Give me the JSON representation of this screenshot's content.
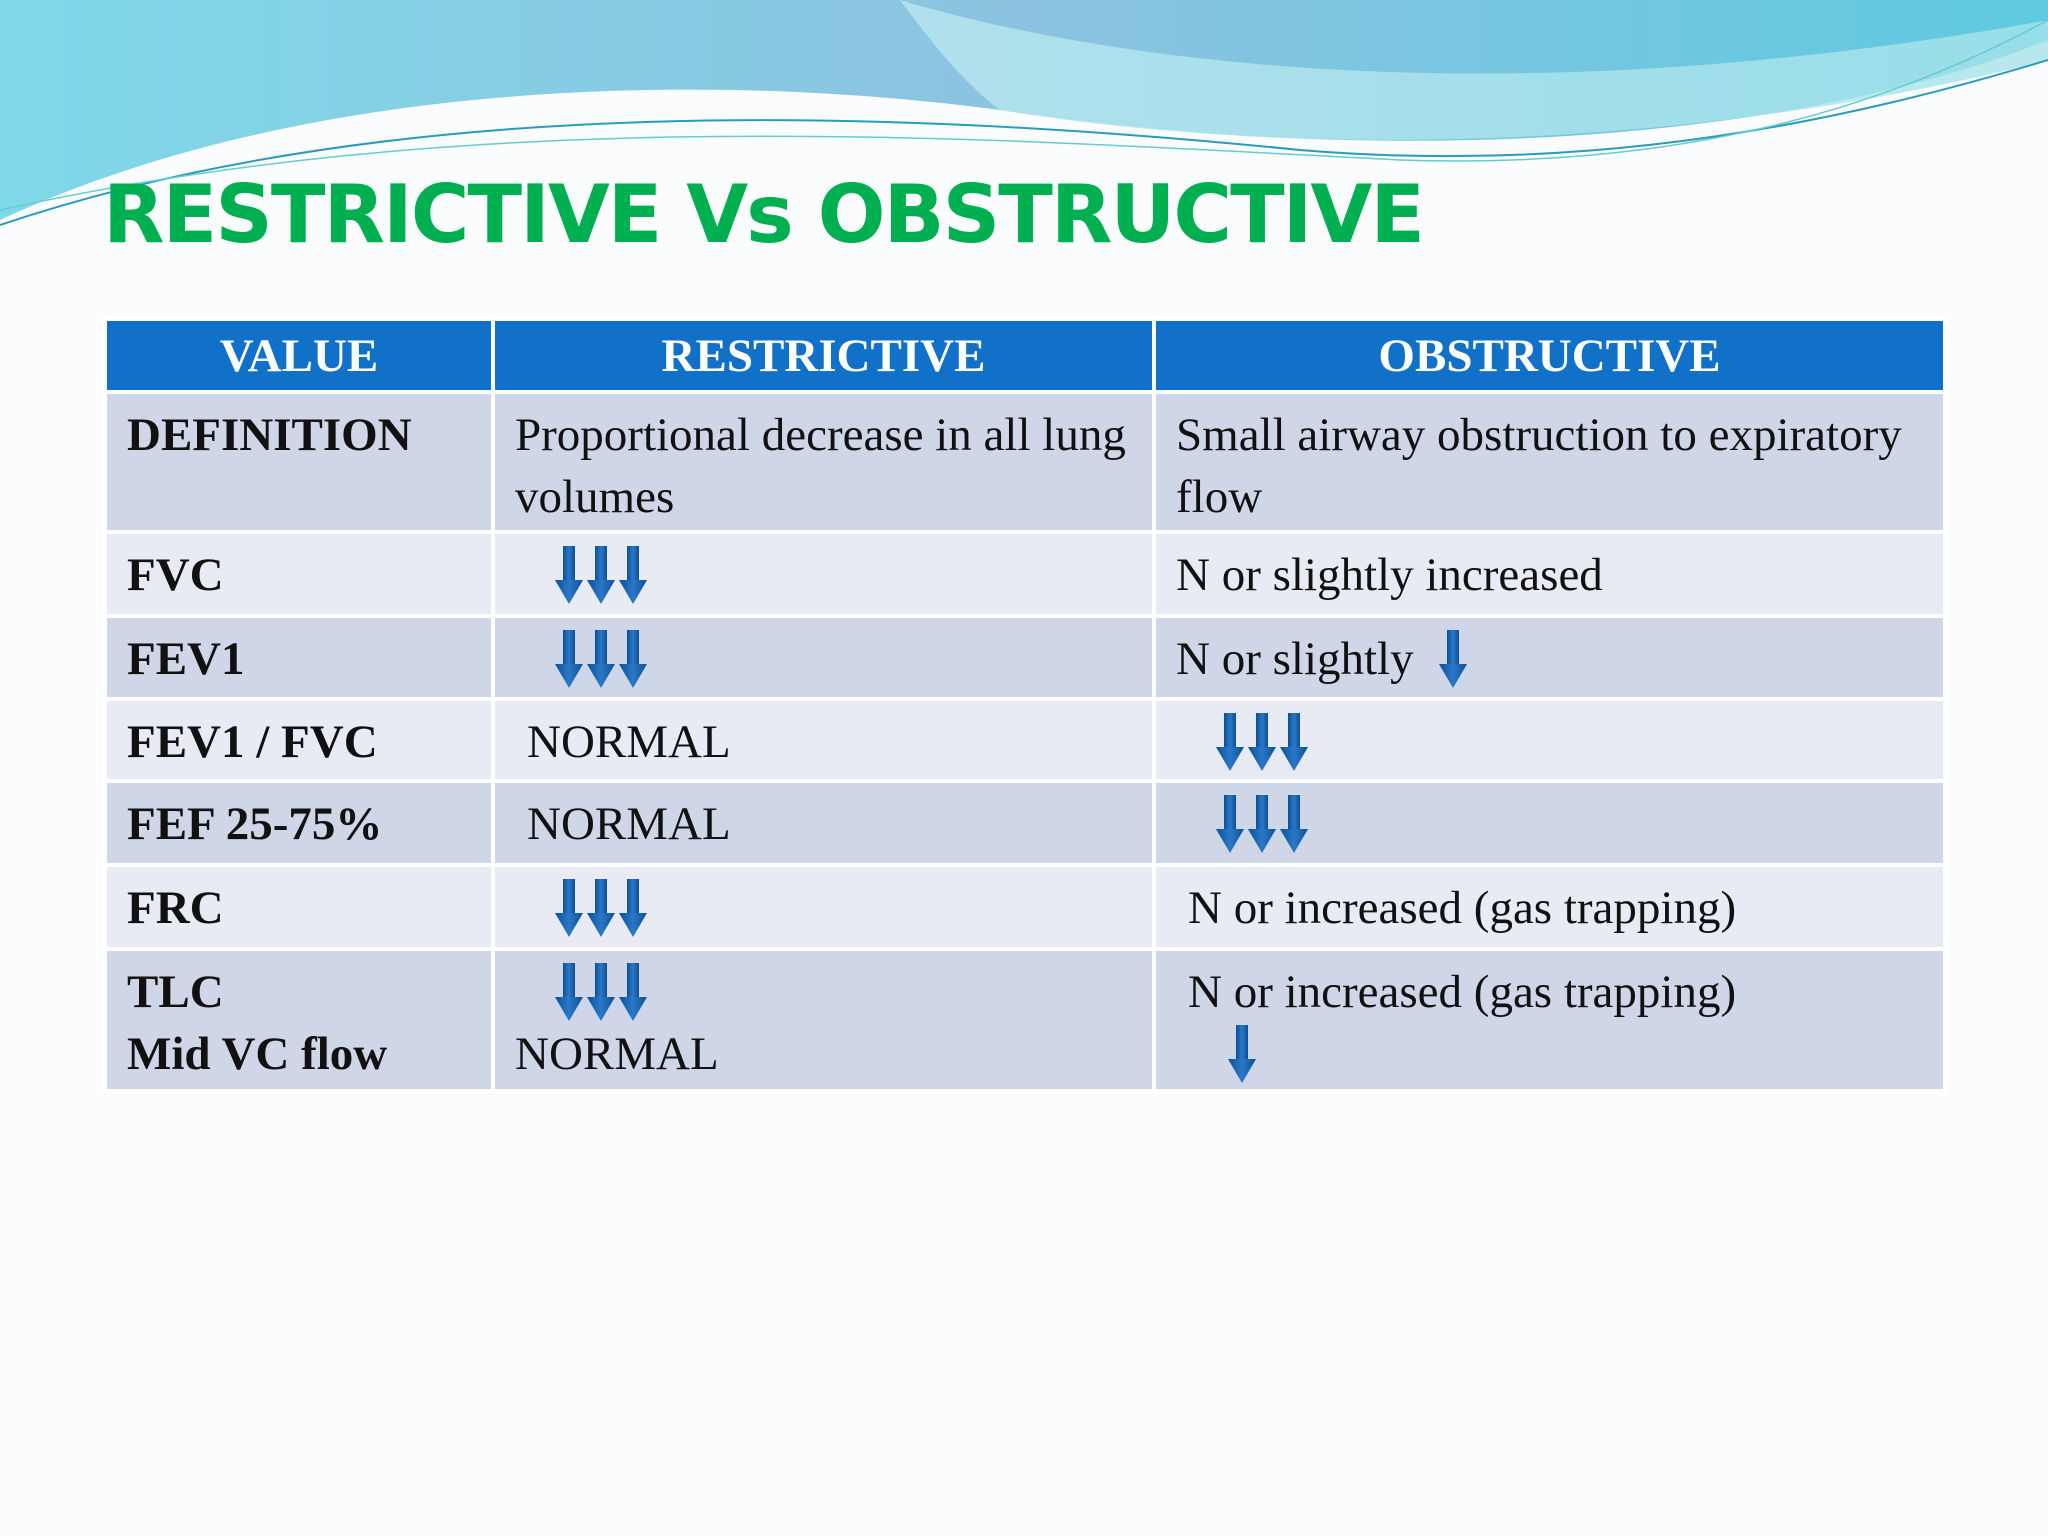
{
  "title": "RESTRICTIVE Vs OBSTRUCTIVE",
  "table": {
    "headers": [
      "VALUE",
      "RESTRICTIVE",
      "OBSTRUCTIVE"
    ],
    "rows": [
      {
        "value": "DEFINITION",
        "restrictive": "Proportional decrease in all lung volumes",
        "obstructive": "Small airway obstruction to expiratory flow"
      },
      {
        "value": "FVC",
        "obstructive": "N or slightly increased"
      },
      {
        "value": "FEV1",
        "obstructive": "N or slightly"
      },
      {
        "value": "FEV1 / FVC",
        "restrictive": "NORMAL"
      },
      {
        "value": "FEF 25-75%",
        "restrictive": "NORMAL"
      },
      {
        "value": "FRC",
        "obstructive": "N or increased (gas trapping)"
      },
      {
        "value": [
          "TLC",
          "Mid VC flow"
        ],
        "restrictive": "NORMAL",
        "obstructive": "N or increased (gas trapping)"
      }
    ]
  }
}
